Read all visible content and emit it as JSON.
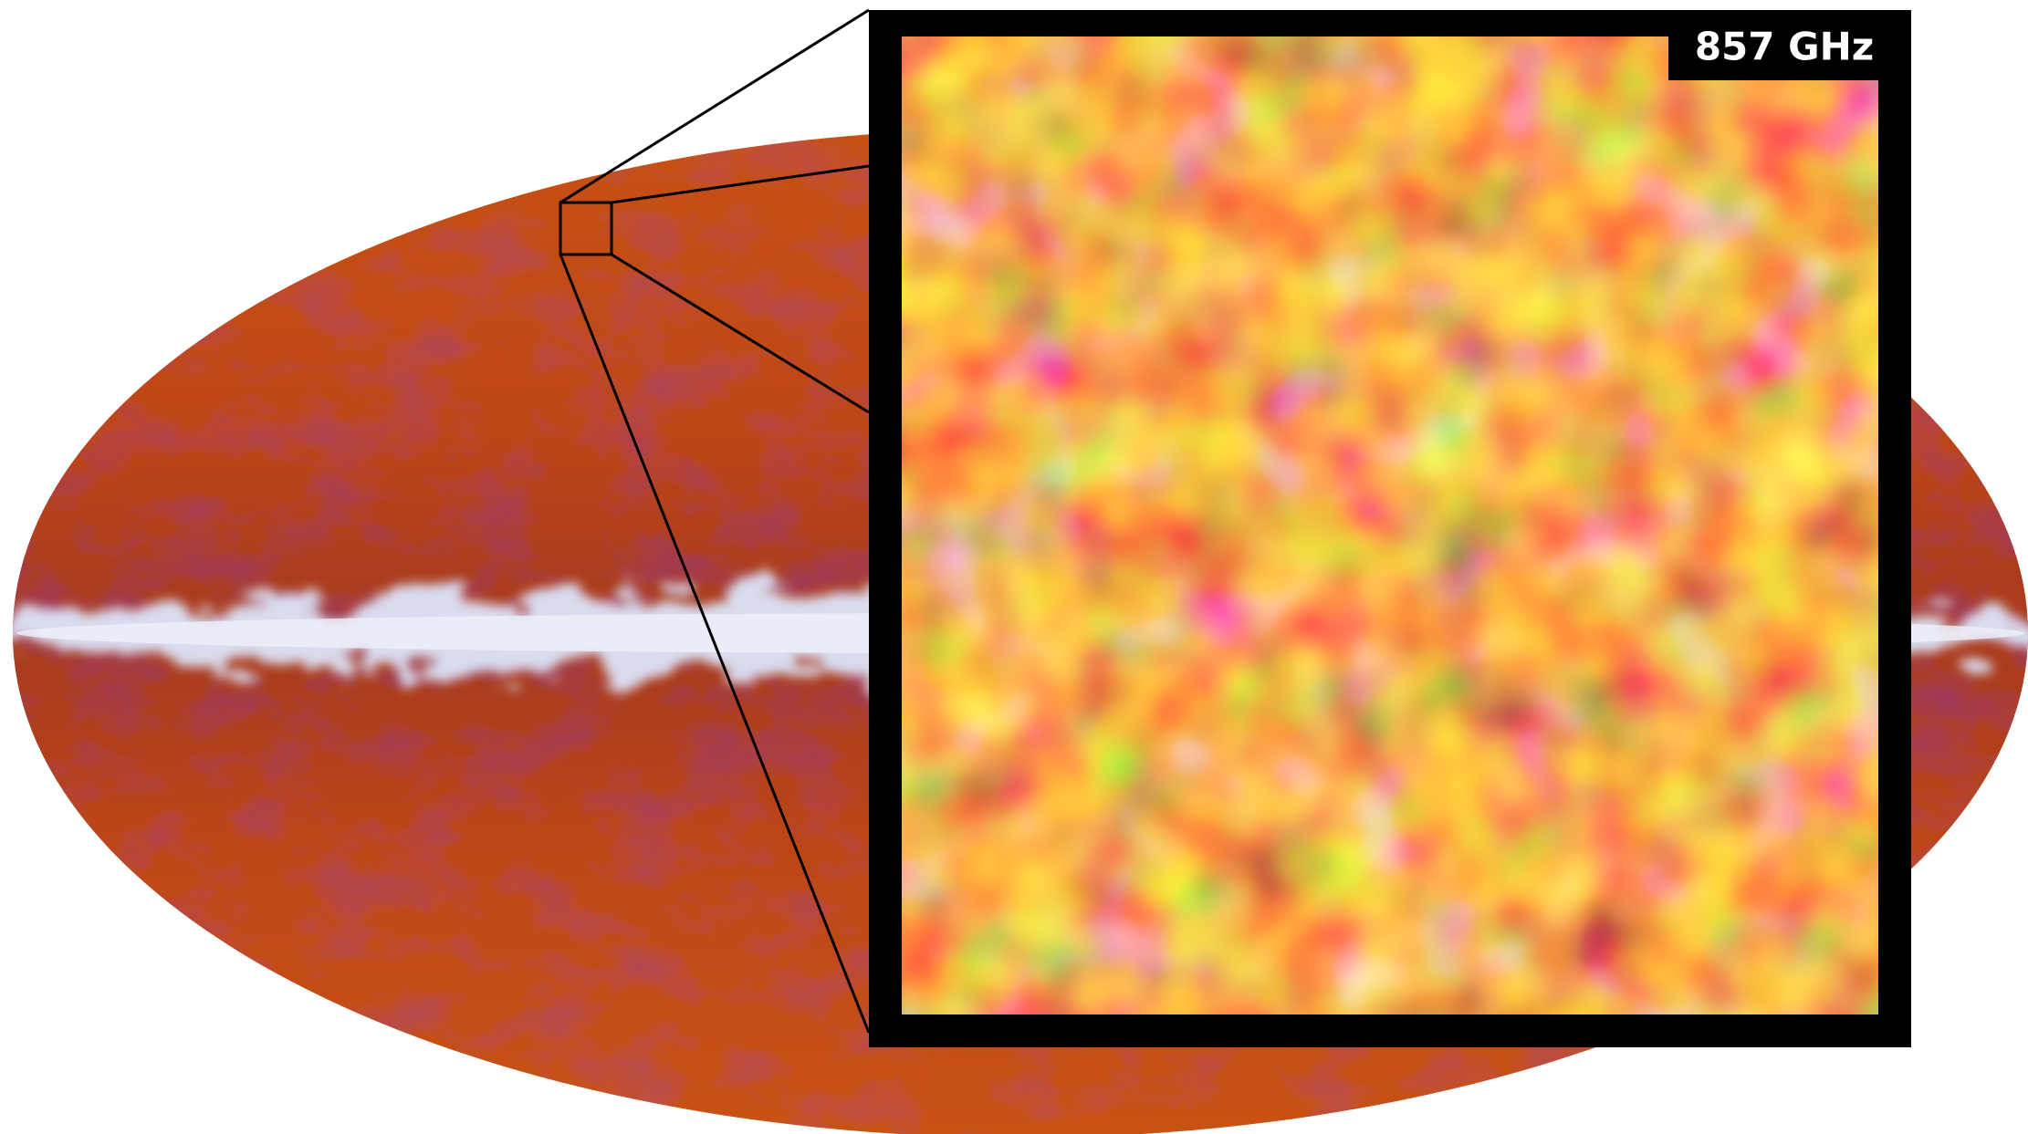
{
  "label": "857 GHz"
}
